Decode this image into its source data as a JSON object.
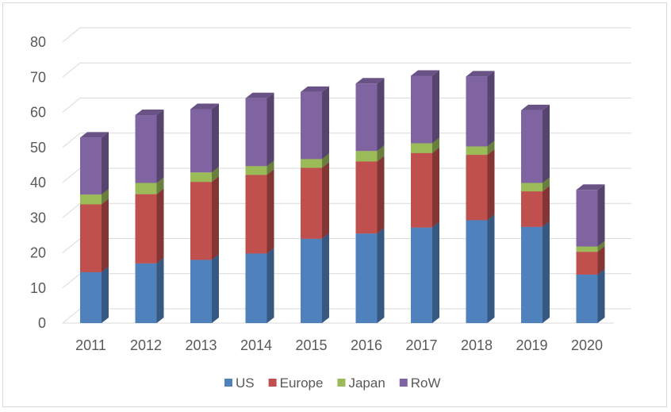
{
  "chart_data": {
    "type": "bar",
    "stacked": true,
    "style": "3d-column",
    "categories": [
      "2011",
      "2012",
      "2013",
      "2014",
      "2015",
      "2016",
      "2017",
      "2018",
      "2019",
      "2020"
    ],
    "series": [
      {
        "name": "US",
        "color": "#4f81bd",
        "values": [
          14.5,
          17,
          18,
          19.8,
          24,
          25.5,
          27.2,
          29.3,
          27.4,
          13.8
        ]
      },
      {
        "name": "Europe",
        "color": "#c0504d",
        "values": [
          19.3,
          19.7,
          22.2,
          22.4,
          20.2,
          20.5,
          21.2,
          18.6,
          10.1,
          6.5
        ]
      },
      {
        "name": "Japan",
        "color": "#9bbb59",
        "values": [
          2.8,
          3.2,
          2.7,
          2.5,
          2.5,
          3,
          2.8,
          2.4,
          2.4,
          1.5
        ]
      },
      {
        "name": "RoW",
        "color": "#8064a2",
        "values": [
          16.2,
          19.3,
          18,
          19.3,
          19.1,
          19.2,
          19.2,
          19.9,
          20.7,
          16.1
        ]
      }
    ],
    "ylim": [
      0,
      80
    ],
    "yticks": [
      "0",
      "10",
      "20",
      "30",
      "40",
      "50",
      "60",
      "70",
      "80"
    ],
    "grid": true,
    "legend": "bottom",
    "title": "",
    "xlabel": "",
    "ylabel": ""
  }
}
